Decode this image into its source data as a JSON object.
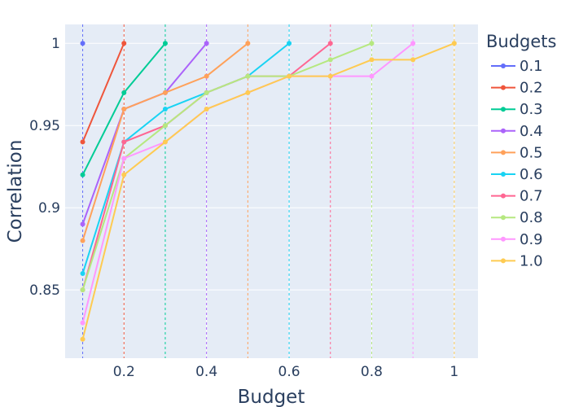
{
  "chart_data": {
    "type": "line",
    "xlabel": "Budget",
    "ylabel": "Correlation",
    "xlim": [
      0.0575,
      1.0575
    ],
    "ylim": [
      0.8085,
      1.0115
    ],
    "x_ticks": [
      0.2,
      0.4,
      0.6,
      0.8,
      1
    ],
    "x_tick_labels": [
      "0.2",
      "0.4",
      "0.6",
      "0.8",
      "1"
    ],
    "y_ticks": [
      0.85,
      0.9,
      0.95,
      1
    ],
    "y_tick_labels": [
      "0.85",
      "0.9",
      "0.95",
      "1"
    ],
    "grid": true,
    "legend": {
      "title": "Budgets",
      "placement": "right"
    },
    "series": [
      {
        "name": "0.1",
        "color": "#636efa",
        "x": [
          0.1
        ],
        "y": [
          1.0
        ]
      },
      {
        "name": "0.2",
        "color": "#ef553b",
        "x": [
          0.1,
          0.2
        ],
        "y": [
          0.94,
          1.0
        ]
      },
      {
        "name": "0.3",
        "color": "#00cc96",
        "x": [
          0.1,
          0.2,
          0.3
        ],
        "y": [
          0.92,
          0.97,
          1.0
        ]
      },
      {
        "name": "0.4",
        "color": "#ab63fa",
        "x": [
          0.1,
          0.2,
          0.3,
          0.4
        ],
        "y": [
          0.89,
          0.96,
          0.97,
          1.0
        ]
      },
      {
        "name": "0.5",
        "color": "#ffa15a",
        "x": [
          0.1,
          0.2,
          0.3,
          0.4,
          0.5
        ],
        "y": [
          0.88,
          0.96,
          0.97,
          0.98,
          1.0
        ]
      },
      {
        "name": "0.6",
        "color": "#19d3f3",
        "x": [
          0.1,
          0.2,
          0.3,
          0.4,
          0.5,
          0.6
        ],
        "y": [
          0.86,
          0.94,
          0.96,
          0.97,
          0.98,
          1.0
        ]
      },
      {
        "name": "0.7",
        "color": "#ff6692",
        "x": [
          0.1,
          0.2,
          0.3,
          0.4,
          0.5,
          0.6,
          0.7
        ],
        "y": [
          0.85,
          0.94,
          0.95,
          0.97,
          0.98,
          0.98,
          1.0
        ]
      },
      {
        "name": "0.8",
        "color": "#b6e880",
        "x": [
          0.1,
          0.2,
          0.3,
          0.4,
          0.5,
          0.6,
          0.7,
          0.8
        ],
        "y": [
          0.85,
          0.93,
          0.95,
          0.97,
          0.98,
          0.98,
          0.99,
          1.0
        ]
      },
      {
        "name": "0.9",
        "color": "#ff97ff",
        "x": [
          0.1,
          0.2,
          0.3,
          0.4,
          0.5,
          0.6,
          0.7,
          0.8,
          0.9
        ],
        "y": [
          0.83,
          0.93,
          0.94,
          0.96,
          0.97,
          0.98,
          0.98,
          0.98,
          1.0
        ]
      },
      {
        "name": "1.0",
        "color": "#fecb52",
        "x": [
          0.1,
          0.2,
          0.3,
          0.4,
          0.5,
          0.6,
          0.7,
          0.8,
          0.9,
          1.0
        ],
        "y": [
          0.82,
          0.92,
          0.94,
          0.96,
          0.97,
          0.98,
          0.98,
          0.99,
          0.99,
          1.0
        ]
      }
    ]
  }
}
